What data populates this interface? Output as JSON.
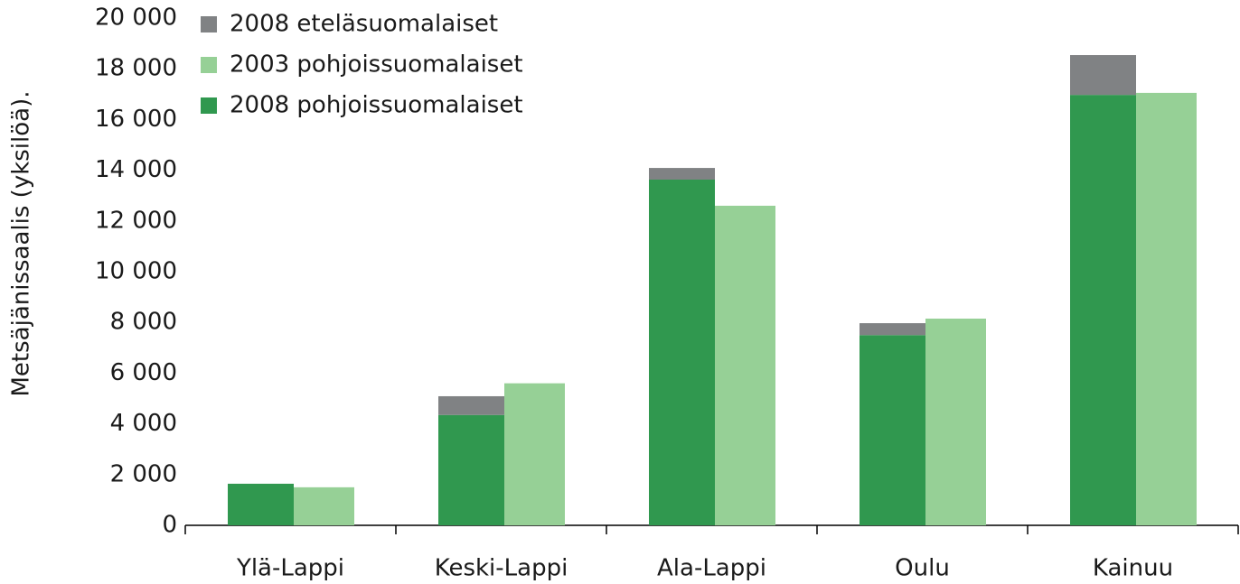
{
  "chart_data": {
    "type": "bar",
    "y_label": "Metsäjänissaalis (yksilöä).",
    "categories": [
      "Ylä-Lappi",
      "Keski-Lappi",
      "Ala-Lappi",
      "Oulu",
      "Kainuu"
    ],
    "series": [
      {
        "name": "2008 eteläsuomalaiset",
        "color": "#808284",
        "stack": 0,
        "values": [
          0,
          740,
          460,
          470,
          1570
        ]
      },
      {
        "name": "2003 pohjoissuomalaiset",
        "color": "#96d096",
        "stack": 1,
        "values": [
          1500,
          5600,
          12600,
          8150,
          17050
        ]
      },
      {
        "name": "2008 pohjoissuomalaiset",
        "color": "#30984f",
        "stack": 0,
        "values": [
          1640,
          4350,
          13630,
          7500,
          16970
        ]
      }
    ],
    "ylim": [
      0,
      20000
    ],
    "yticks": [
      0,
      {
        "value": 2000,
        "label": "2 000"
      },
      {
        "value": 4000,
        "label": "4 000"
      },
      {
        "value": 6000,
        "label": "6 000"
      },
      {
        "value": 8000,
        "label": "8 000"
      },
      {
        "value": 10000,
        "label": "10 000"
      },
      {
        "value": 12000,
        "label": "12 000"
      },
      {
        "value": 14000,
        "label": "14 000"
      },
      {
        "value": 16000,
        "label": "16 000"
      },
      {
        "value": 18000,
        "label": "18 000"
      },
      {
        "value": 20000,
        "label": "20 000"
      }
    ],
    "grid": false,
    "legend": "top-left"
  }
}
